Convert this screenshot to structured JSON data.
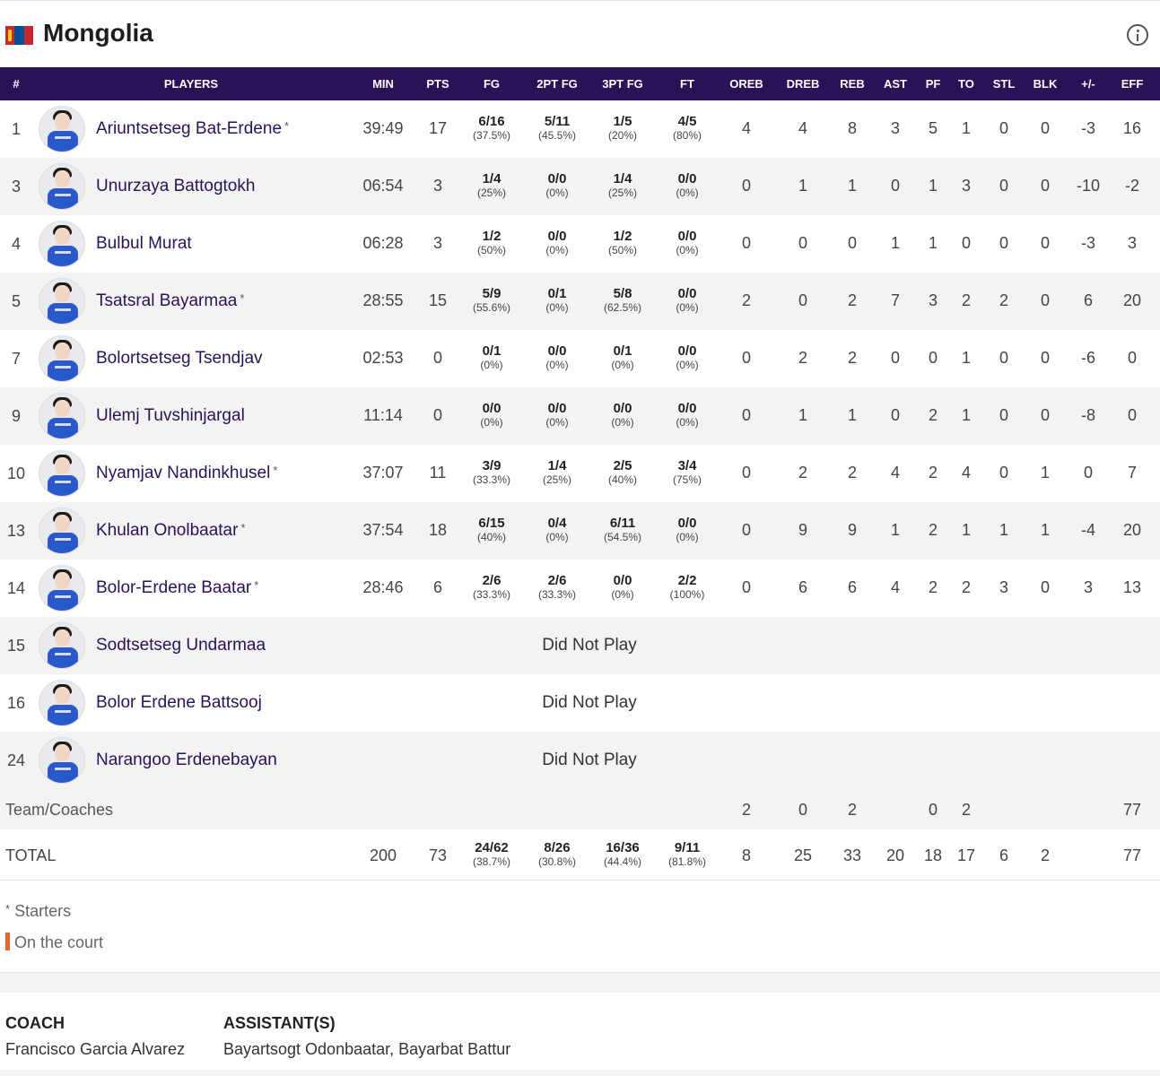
{
  "team": {
    "name": "Mongolia",
    "flag_icon": "mongolia-flag-icon",
    "info_icon": "info-icon"
  },
  "headers": [
    "#",
    "PLAYERS",
    "MIN",
    "PTS",
    "FG",
    "2PT FG",
    "3PT FG",
    "FT",
    "OREB",
    "DREB",
    "REB",
    "AST",
    "PF",
    "TO",
    "STL",
    "BLK",
    "+/-",
    "EFF"
  ],
  "players": [
    {
      "num": "1",
      "name": "Ariuntsetseg Bat-Erdene",
      "starter": true,
      "min": "39:49",
      "pts": "17",
      "fg": "6/16",
      "fg_pct": "(37.5%)",
      "fg2": "5/11",
      "fg2_pct": "(45.5%)",
      "fg3": "1/5",
      "fg3_pct": "(20%)",
      "ft": "4/5",
      "ft_pct": "(80%)",
      "oreb": "4",
      "dreb": "4",
      "reb": "8",
      "ast": "3",
      "pf": "5",
      "to": "1",
      "stl": "0",
      "blk": "0",
      "pm": "-3",
      "eff": "16"
    },
    {
      "num": "3",
      "name": "Unurzaya Battogtokh",
      "starter": false,
      "min": "06:54",
      "pts": "3",
      "fg": "1/4",
      "fg_pct": "(25%)",
      "fg2": "0/0",
      "fg2_pct": "(0%)",
      "fg3": "1/4",
      "fg3_pct": "(25%)",
      "ft": "0/0",
      "ft_pct": "(0%)",
      "oreb": "0",
      "dreb": "1",
      "reb": "1",
      "ast": "0",
      "pf": "1",
      "to": "3",
      "stl": "0",
      "blk": "0",
      "pm": "-10",
      "eff": "-2"
    },
    {
      "num": "4",
      "name": "Bulbul Murat",
      "starter": false,
      "min": "06:28",
      "pts": "3",
      "fg": "1/2",
      "fg_pct": "(50%)",
      "fg2": "0/0",
      "fg2_pct": "(0%)",
      "fg3": "1/2",
      "fg3_pct": "(50%)",
      "ft": "0/0",
      "ft_pct": "(0%)",
      "oreb": "0",
      "dreb": "0",
      "reb": "0",
      "ast": "1",
      "pf": "1",
      "to": "0",
      "stl": "0",
      "blk": "0",
      "pm": "-3",
      "eff": "3"
    },
    {
      "num": "5",
      "name": "Tsatsral Bayarmaa",
      "starter": true,
      "min": "28:55",
      "pts": "15",
      "fg": "5/9",
      "fg_pct": "(55.6%)",
      "fg2": "0/1",
      "fg2_pct": "(0%)",
      "fg3": "5/8",
      "fg3_pct": "(62.5%)",
      "ft": "0/0",
      "ft_pct": "(0%)",
      "oreb": "2",
      "dreb": "0",
      "reb": "2",
      "ast": "7",
      "pf": "3",
      "to": "2",
      "stl": "2",
      "blk": "0",
      "pm": "6",
      "eff": "20"
    },
    {
      "num": "7",
      "name": "Bolortsetseg Tsendjav",
      "starter": false,
      "min": "02:53",
      "pts": "0",
      "fg": "0/1",
      "fg_pct": "(0%)",
      "fg2": "0/0",
      "fg2_pct": "(0%)",
      "fg3": "0/1",
      "fg3_pct": "(0%)",
      "ft": "0/0",
      "ft_pct": "(0%)",
      "oreb": "0",
      "dreb": "2",
      "reb": "2",
      "ast": "0",
      "pf": "0",
      "to": "1",
      "stl": "0",
      "blk": "0",
      "pm": "-6",
      "eff": "0"
    },
    {
      "num": "9",
      "name": "Ulemj Tuvshinjargal",
      "starter": false,
      "min": "11:14",
      "pts": "0",
      "fg": "0/0",
      "fg_pct": "(0%)",
      "fg2": "0/0",
      "fg2_pct": "(0%)",
      "fg3": "0/0",
      "fg3_pct": "(0%)",
      "ft": "0/0",
      "ft_pct": "(0%)",
      "oreb": "0",
      "dreb": "1",
      "reb": "1",
      "ast": "0",
      "pf": "2",
      "to": "1",
      "stl": "0",
      "blk": "0",
      "pm": "-8",
      "eff": "0"
    },
    {
      "num": "10",
      "name": "Nyamjav Nandinkhusel",
      "starter": true,
      "min": "37:07",
      "pts": "11",
      "fg": "3/9",
      "fg_pct": "(33.3%)",
      "fg2": "1/4",
      "fg2_pct": "(25%)",
      "fg3": "2/5",
      "fg3_pct": "(40%)",
      "ft": "3/4",
      "ft_pct": "(75%)",
      "oreb": "0",
      "dreb": "2",
      "reb": "2",
      "ast": "4",
      "pf": "2",
      "to": "4",
      "stl": "0",
      "blk": "1",
      "pm": "0",
      "eff": "7"
    },
    {
      "num": "13",
      "name": "Khulan Onolbaatar",
      "starter": true,
      "min": "37:54",
      "pts": "18",
      "fg": "6/15",
      "fg_pct": "(40%)",
      "fg2": "0/4",
      "fg2_pct": "(0%)",
      "fg3": "6/11",
      "fg3_pct": "(54.5%)",
      "ft": "0/0",
      "ft_pct": "(0%)",
      "oreb": "0",
      "dreb": "9",
      "reb": "9",
      "ast": "1",
      "pf": "2",
      "to": "1",
      "stl": "1",
      "blk": "1",
      "pm": "-4",
      "eff": "20"
    },
    {
      "num": "14",
      "name": "Bolor-Erdene Baatar",
      "starter": true,
      "min": "28:46",
      "pts": "6",
      "fg": "2/6",
      "fg_pct": "(33.3%)",
      "fg2": "2/6",
      "fg2_pct": "(33.3%)",
      "fg3": "0/0",
      "fg3_pct": "(0%)",
      "ft": "2/2",
      "ft_pct": "(100%)",
      "oreb": "0",
      "dreb": "6",
      "reb": "6",
      "ast": "4",
      "pf": "2",
      "to": "2",
      "stl": "3",
      "blk": "0",
      "pm": "3",
      "eff": "13"
    },
    {
      "num": "15",
      "name": "Sodtsetseg Undarmaa",
      "starter": false,
      "dnp": "Did Not Play"
    },
    {
      "num": "16",
      "name": "Bolor Erdene Battsooj",
      "starter": false,
      "dnp": "Did Not Play"
    },
    {
      "num": "24",
      "name": "Narangoo Erdenebayan",
      "starter": false,
      "dnp": "Did Not Play"
    }
  ],
  "team_coaches": {
    "label": "Team/Coaches",
    "oreb": "2",
    "dreb": "0",
    "reb": "2",
    "pf": "0",
    "to": "2",
    "eff": "77"
  },
  "total": {
    "label": "TOTAL",
    "min": "200",
    "pts": "73",
    "fg": "24/62",
    "fg_pct": "(38.7%)",
    "fg2": "8/26",
    "fg2_pct": "(30.8%)",
    "fg3": "16/36",
    "fg3_pct": "(44.4%)",
    "ft": "9/11",
    "ft_pct": "(81.8%)",
    "oreb": "8",
    "dreb": "25",
    "reb": "33",
    "ast": "20",
    "pf": "18",
    "to": "17",
    "stl": "6",
    "blk": "2",
    "eff": "77"
  },
  "legend": {
    "starters_mark": "*",
    "starters": "Starters",
    "on_court": "On the court",
    "on_court_color": "#e8642b"
  },
  "staff": {
    "coach_label": "COACH",
    "coach": "Francisco Garcia Alvarez",
    "assistants_label": "ASSISTANT(S)",
    "assistants": "Bayartsogt Odonbaatar, Bayarbat Battur"
  },
  "colors": {
    "header_bg": "#2c1156",
    "player_name": "#2c1156",
    "row_alt": "#f3f3f3"
  }
}
